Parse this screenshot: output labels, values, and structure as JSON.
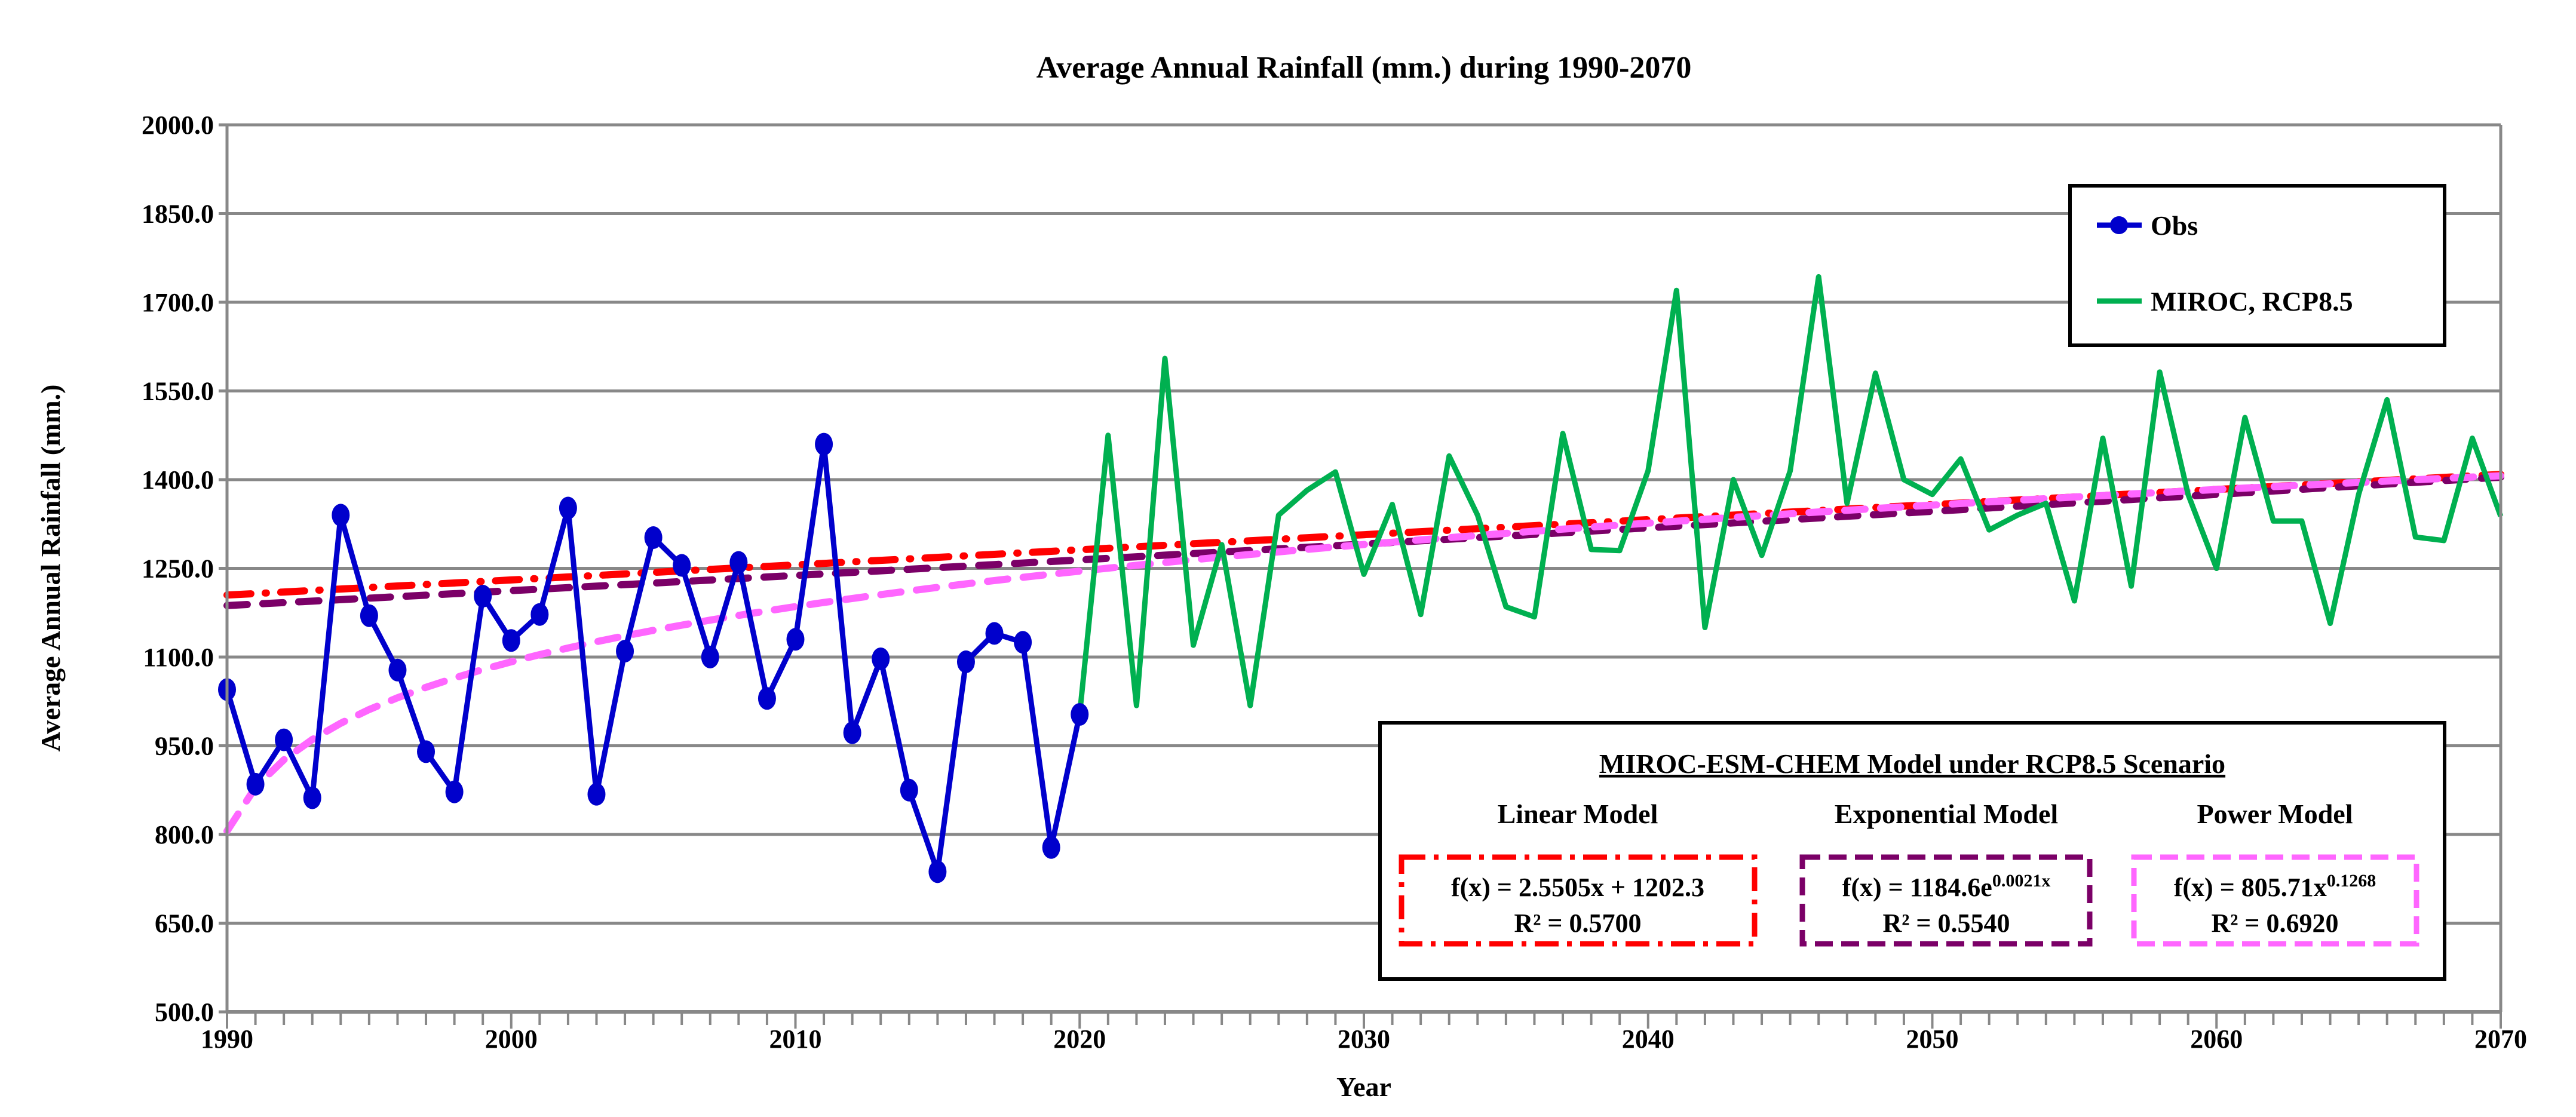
{
  "chart_data": {
    "type": "line",
    "title": "Average Annual Rainfall (mm.) during 1990-2070",
    "xlabel": "Year",
    "ylabel": "Average Annual Rainfall (mm.)",
    "xlim": [
      1990,
      2070
    ],
    "ylim": [
      500,
      2000
    ],
    "y_ticks": [
      "500.0",
      "650.0",
      "800.0",
      "950.0",
      "1100.0",
      "1250.0",
      "1400.0",
      "1550.0",
      "1700.0",
      "1850.0",
      "2000.0"
    ],
    "x_ticks": [
      "1990",
      "2000",
      "2010",
      "2020",
      "2030",
      "2040",
      "2050",
      "2060",
      "2070"
    ],
    "grid": "horizontal",
    "legend": {
      "position": "top-right",
      "entries": [
        "Obs",
        "MIROC, RCP8.5"
      ]
    },
    "series": [
      {
        "name": "Obs",
        "color": "#0000CC",
        "marker": "circle",
        "x": [
          1990,
          1991,
          1992,
          1993,
          1994,
          1995,
          1996,
          1997,
          1998,
          1999,
          2000,
          2001,
          2002,
          2003,
          2004,
          2005,
          2006,
          2007,
          2008,
          2009,
          2010,
          2011,
          2012,
          2013,
          2014,
          2015,
          2016,
          2017,
          2018,
          2019,
          2020
        ],
        "values": [
          1045,
          885,
          960,
          862,
          1340,
          1170,
          1078,
          940,
          872,
          1203,
          1128,
          1172,
          1352,
          868,
          1110,
          1302,
          1255,
          1100,
          1260,
          1030,
          1130,
          1460,
          972,
          1097,
          875,
          737,
          1092,
          1140,
          1125,
          778,
          1003
        ]
      },
      {
        "name": "MIROC, RCP8.5",
        "color": "#00B050",
        "marker": "none",
        "x": [
          2020,
          2021,
          2022,
          2023,
          2024,
          2025,
          2026,
          2027,
          2028,
          2029,
          2030,
          2031,
          2032,
          2033,
          2034,
          2035,
          2036,
          2037,
          2038,
          2039,
          2040,
          2041,
          2042,
          2043,
          2044,
          2045,
          2046,
          2047,
          2048,
          2049,
          2050,
          2051,
          2052,
          2053,
          2054,
          2055,
          2056,
          2057,
          2058,
          2059,
          2060,
          2061,
          2062,
          2063,
          2064,
          2065,
          2066,
          2067,
          2068,
          2069,
          2070
        ],
        "values": [
          1003,
          1475,
          1018,
          1605,
          1120,
          1290,
          1018,
          1340,
          1382,
          1413,
          1240,
          1358,
          1172,
          1440,
          1340,
          1185,
          1168,
          1478,
          1282,
          1280,
          1415,
          1720,
          1150,
          1400,
          1272,
          1415,
          1743,
          1360,
          1580,
          1400,
          1375,
          1435,
          1315,
          1340,
          1360,
          1195,
          1470,
          1220,
          1582,
          1375,
          1250,
          1505,
          1330,
          1330,
          1157,
          1375,
          1535,
          1303,
          1297,
          1470,
          1338
        ]
      }
    ],
    "trendlines": [
      {
        "name": "Linear Model",
        "color": "#FF0000",
        "style": "dash-dot",
        "a": 2.5505,
        "b": 1202.3,
        "kind": "linear"
      },
      {
        "name": "Exponential Model",
        "color": "#7B0067",
        "style": "dash",
        "a": 1184.6,
        "b": 0.0021,
        "kind": "exponential"
      },
      {
        "name": "Power Model",
        "color": "#FF66FF",
        "style": "dash",
        "a": 805.71,
        "b": 0.1268,
        "kind": "power"
      }
    ],
    "model_box": {
      "title": "MIROC-ESM-CHEM Model under RCP8.5 Scenario",
      "linear": {
        "heading": "Linear Model",
        "eq": "f(x) = 2.5505x + 1202.3",
        "r2": "R² = 0.5700"
      },
      "exponential": {
        "heading": "Exponential Model",
        "eq_base": "f(x) = 1184.6e",
        "eq_exp": "0.0021x",
        "r2": "R² = 0.5540"
      },
      "power": {
        "heading": "Power Model",
        "eq_base": "f(x) = 805.71x",
        "eq_exp": "0.1268",
        "r2": "R² = 0.6920"
      }
    }
  }
}
